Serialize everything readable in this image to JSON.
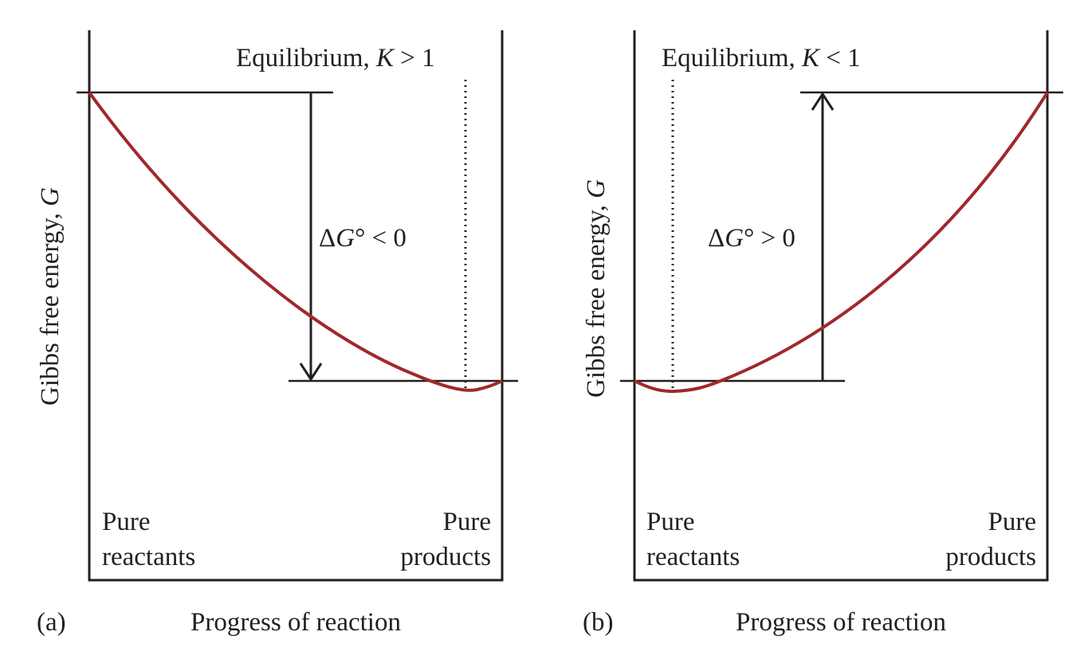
{
  "figure": {
    "colors": {
      "curve": "#a0282c",
      "ink": "#231f20",
      "background": "#ffffff"
    },
    "panels": [
      {
        "id": "a",
        "panel_label": "(a)",
        "x_axis_label": "Progress of reaction",
        "y_axis_label_main": "Gibbs free energy, ",
        "y_axis_label_var": "G",
        "eq_label_main": "Equilibrium, ",
        "eq_label_var": "K",
        "eq_label_rel": " > 1",
        "delta_prefix": "Δ",
        "delta_var": "G",
        "delta_rel": "° < 0",
        "left_line1": "Pure",
        "left_line2": "reactants",
        "right_line1": "Pure",
        "right_line2": "products",
        "arrow_direction": "down",
        "equilibrium_position": "near products"
      },
      {
        "id": "b",
        "panel_label": "(b)",
        "x_axis_label": "Progress of reaction",
        "y_axis_label_main": "Gibbs free energy, ",
        "y_axis_label_var": "G",
        "eq_label_main": "Equilibrium, ",
        "eq_label_var": "K",
        "eq_label_rel": " < 1",
        "delta_prefix": "Δ",
        "delta_var": "G",
        "delta_rel": "° > 0",
        "left_line1": "Pure",
        "left_line2": "reactants",
        "right_line1": "Pure",
        "right_line2": "products",
        "arrow_direction": "up",
        "equilibrium_position": "near reactants"
      }
    ]
  }
}
